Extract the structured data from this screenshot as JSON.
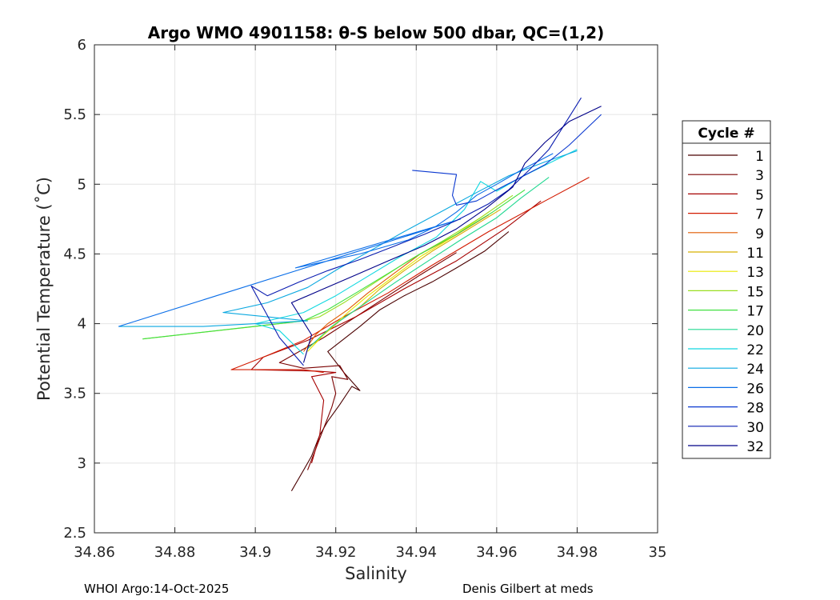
{
  "chart_data": {
    "type": "line",
    "title": "Argo WMO 4901158: θ-S below 500 dbar,  QC=(1,2)",
    "xlabel": "Salinity",
    "ylabel": "Potential Temperature (˚C)",
    "xlim": [
      34.86,
      35.0
    ],
    "ylim": [
      2.5,
      6.0
    ],
    "xticks": [
      "34.86",
      "34.88",
      "34.9",
      "34.92",
      "34.94",
      "34.96",
      "34.98",
      "35"
    ],
    "yticks": [
      "2.5",
      "3",
      "3.5",
      "4",
      "4.5",
      "5",
      "5.5",
      "6"
    ],
    "grid": true,
    "legend": {
      "title": "Cycle #",
      "placement": "right",
      "entries": [
        "1",
        "3",
        "5",
        "7",
        "9",
        "11",
        "13",
        "15",
        "17",
        "20",
        "22",
        "24",
        "26",
        "28",
        "30",
        "32"
      ]
    },
    "series": [
      {
        "name": "1",
        "color": "#4a0000",
        "x": [
          34.909,
          34.912,
          34.914,
          34.916,
          34.918,
          34.921,
          34.924,
          34.926,
          34.922,
          34.918,
          34.926,
          34.931,
          34.937,
          34.944,
          34.95,
          34.957,
          34.963
        ],
        "y": [
          2.8,
          2.95,
          3.05,
          3.2,
          3.3,
          3.42,
          3.55,
          3.52,
          3.65,
          3.8,
          3.98,
          4.1,
          4.2,
          4.3,
          4.4,
          4.52,
          4.66
        ]
      },
      {
        "name": "3",
        "color": "#7a0000",
        "x": [
          34.913,
          34.915,
          34.917,
          34.919,
          34.92,
          34.919,
          34.923,
          34.921,
          34.912,
          34.906,
          34.917,
          34.925,
          34.933,
          34.941,
          34.95
        ],
        "y": [
          2.95,
          3.1,
          3.25,
          3.4,
          3.5,
          3.62,
          3.6,
          3.7,
          3.68,
          3.72,
          3.9,
          4.05,
          4.2,
          4.35,
          4.51
        ]
      },
      {
        "name": "5",
        "color": "#a60000",
        "x": [
          34.914,
          34.916,
          34.917,
          34.914,
          34.92,
          34.915,
          34.899,
          34.902,
          34.913,
          34.925,
          34.937,
          34.95,
          34.962,
          34.971
        ],
        "y": [
          3.0,
          3.2,
          3.45,
          3.62,
          3.65,
          3.66,
          3.67,
          3.76,
          3.88,
          4.05,
          4.25,
          4.45,
          4.68,
          4.88
        ]
      },
      {
        "name": "7",
        "color": "#d21a00",
        "x": [
          34.917,
          34.912,
          34.894,
          34.902,
          34.912,
          34.922,
          34.933,
          34.944,
          34.958,
          34.972,
          34.983
        ],
        "y": [
          3.65,
          3.67,
          3.67,
          3.76,
          3.88,
          4.05,
          4.22,
          4.42,
          4.66,
          4.88,
          5.05
        ]
      },
      {
        "name": "9",
        "color": "#e05a00",
        "x": [
          34.912,
          34.915,
          34.918,
          34.923,
          34.928,
          34.934,
          34.941,
          34.949,
          34.958
        ],
        "y": [
          3.8,
          3.92,
          4.0,
          4.1,
          4.22,
          4.35,
          4.5,
          4.62,
          4.78
        ]
      },
      {
        "name": "11",
        "color": "#d8b000",
        "x": [
          34.913,
          34.917,
          34.921,
          34.926,
          34.931,
          34.937,
          34.944,
          34.952,
          34.961
        ],
        "y": [
          3.82,
          3.92,
          4.02,
          4.12,
          4.25,
          4.38,
          4.52,
          4.66,
          4.82
        ]
      },
      {
        "name": "13",
        "color": "#e8e800",
        "x": [
          34.913,
          34.918,
          34.923,
          34.928,
          34.934,
          34.941,
          34.949,
          34.958
        ],
        "y": [
          3.8,
          3.95,
          4.08,
          4.2,
          4.33,
          4.48,
          4.62,
          4.8
        ]
      },
      {
        "name": "15",
        "color": "#9ade20",
        "x": [
          34.872,
          34.9,
          34.912,
          34.916,
          34.922,
          34.93,
          34.938,
          34.947,
          34.956,
          34.964
        ],
        "y": [
          3.89,
          3.98,
          4.02,
          4.05,
          4.15,
          4.3,
          4.45,
          4.6,
          4.76,
          4.92
        ]
      },
      {
        "name": "17",
        "color": "#40e040",
        "x": [
          34.872,
          34.912,
          34.918,
          34.925,
          34.933,
          34.941,
          34.95,
          34.959,
          34.967
        ],
        "y": [
          3.89,
          4.02,
          4.1,
          4.22,
          4.36,
          4.5,
          4.64,
          4.8,
          4.96
        ]
      },
      {
        "name": "20",
        "color": "#20d890",
        "x": [
          34.913,
          34.919,
          34.927,
          34.935,
          34.943,
          34.951,
          34.96,
          34.966,
          34.973
        ],
        "y": [
          3.82,
          3.98,
          4.14,
          4.3,
          4.45,
          4.6,
          4.76,
          4.9,
          5.05
        ]
      },
      {
        "name": "22",
        "color": "#10d8e0",
        "x": [
          34.912,
          34.906,
          34.9,
          34.912,
          34.92,
          34.928,
          34.936,
          34.945,
          34.952,
          34.956,
          34.96,
          34.966,
          34.973,
          34.98
        ],
        "y": [
          3.78,
          3.95,
          4.0,
          4.08,
          4.2,
          4.34,
          4.48,
          4.62,
          4.82,
          5.02,
          4.95,
          5.05,
          5.15,
          5.25
        ]
      },
      {
        "name": "24",
        "color": "#0aa8e0",
        "x": [
          34.866,
          34.887,
          34.913,
          34.892,
          34.903,
          34.913,
          34.921,
          34.929,
          34.937,
          34.946,
          34.955,
          34.963,
          34.972,
          34.98
        ],
        "y": [
          3.98,
          3.98,
          4.02,
          4.08,
          4.15,
          4.26,
          4.4,
          4.53,
          4.66,
          4.8,
          4.94,
          5.06,
          5.16,
          5.24
        ]
      },
      {
        "name": "26",
        "color": "#0a6ee8",
        "x": [
          34.866,
          34.951,
          34.91,
          34.926,
          34.938,
          34.945,
          34.95,
          34.955,
          34.96,
          34.966,
          34.974
        ],
        "y": [
          3.98,
          4.75,
          4.4,
          4.5,
          4.6,
          4.7,
          4.8,
          4.92,
          5.0,
          5.1,
          5.22
        ]
      },
      {
        "name": "28",
        "color": "#0a38d0",
        "x": [
          34.939,
          34.95,
          34.949,
          34.95,
          34.955,
          34.96,
          34.966,
          34.972,
          34.978,
          34.986
        ],
        "y": [
          5.1,
          5.07,
          4.92,
          4.85,
          4.88,
          4.96,
          5.05,
          5.14,
          5.28,
          5.5
        ]
      },
      {
        "name": "30",
        "color": "#0a1cb0",
        "x": [
          34.912,
          34.906,
          34.899,
          34.903,
          34.911,
          34.918,
          34.926,
          34.934,
          34.942,
          34.95,
          34.958,
          34.963,
          34.968,
          34.973,
          34.981
        ],
        "y": [
          3.7,
          3.9,
          4.27,
          4.2,
          4.3,
          4.38,
          4.46,
          4.55,
          4.64,
          4.74,
          4.86,
          4.96,
          5.1,
          5.25,
          5.62
        ]
      },
      {
        "name": "32",
        "color": "#000088",
        "x": [
          34.912,
          34.914,
          34.909,
          34.917,
          34.925,
          34.933,
          34.942,
          34.95,
          34.957,
          34.964,
          34.967,
          34.972,
          34.978,
          34.986
        ],
        "y": [
          3.72,
          3.92,
          4.15,
          4.25,
          4.35,
          4.45,
          4.56,
          4.68,
          4.82,
          4.98,
          5.15,
          5.3,
          5.45,
          5.56
        ]
      }
    ]
  },
  "footer": {
    "left": "WHOI Argo:14-Oct-2025",
    "right": "Denis Gilbert at meds"
  }
}
